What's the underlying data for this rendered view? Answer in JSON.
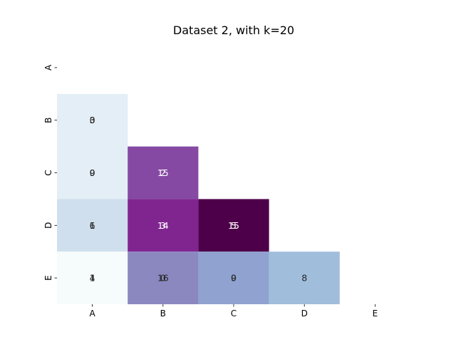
{
  "chart_data": {
    "type": "heatmap",
    "title": "Dataset 2, with k=20",
    "x_categories": [
      "A",
      "B",
      "C",
      "D",
      "E"
    ],
    "y_categories": [
      "A",
      "B",
      "C",
      "D",
      "E"
    ],
    "mask": "upper-triangle-including-diagonal",
    "colormap": "BuPu",
    "cells": [
      {
        "row": "B",
        "col": "A",
        "overlaid_labels": [
          "3",
          "0"
        ],
        "color": "#e3eef6"
      },
      {
        "row": "C",
        "col": "A",
        "overlaid_labels": [
          "9",
          "0"
        ],
        "color": "#e3eef6"
      },
      {
        "row": "C",
        "col": "B",
        "overlaid_labels": [
          "15",
          "2"
        ],
        "color": "#8549a3"
      },
      {
        "row": "D",
        "col": "A",
        "overlaid_labels": [
          "6",
          "1"
        ],
        "color": "#cfdfed"
      },
      {
        "row": "D",
        "col": "B",
        "overlaid_labels": [
          "14",
          "3"
        ],
        "color": "#802590"
      },
      {
        "row": "D",
        "col": "C",
        "overlaid_labels": [
          "15",
          "5"
        ],
        "color": "#4d0049"
      },
      {
        "row": "E",
        "col": "A",
        "overlaid_labels": [
          "4",
          "1"
        ],
        "color": "#f6fbfb"
      },
      {
        "row": "E",
        "col": "B",
        "overlaid_labels": [
          "16",
          "0"
        ],
        "color": "#8b88c0"
      },
      {
        "row": "E",
        "col": "C",
        "overlaid_labels": [
          "9",
          "0"
        ],
        "color": "#90a2cf"
      },
      {
        "row": "E",
        "col": "D",
        "overlaid_labels": [
          "8"
        ],
        "color": "#a1bddc"
      }
    ],
    "grid": false,
    "legend": "none",
    "colors": {
      "dark_text": "#262626",
      "light_text": "#ffffff"
    }
  }
}
